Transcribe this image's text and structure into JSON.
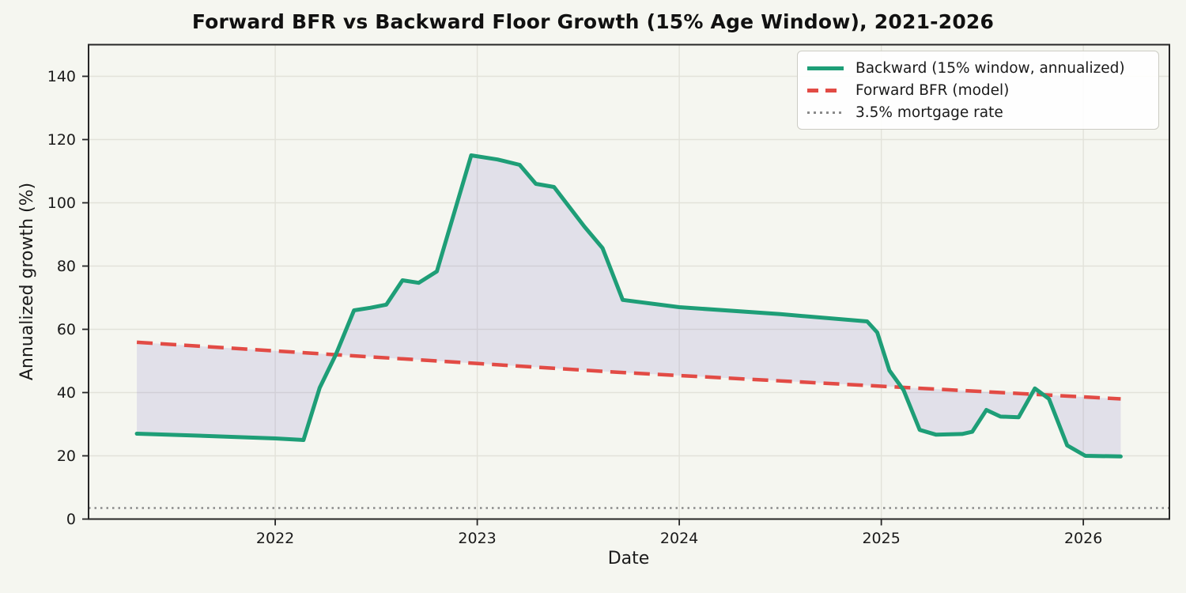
{
  "figure": {
    "background": "#f5f6f0",
    "plot_background": "#f5f6f0"
  },
  "chart_data": {
    "type": "line",
    "title": "Forward BFR vs Backward Floor Growth (15% Age Window), 2021-2026",
    "xlabel": "Date",
    "ylabel": "Annualized growth (%)",
    "xlim": [
      2021.076,
      2026.426
    ],
    "ylim": [
      0,
      150
    ],
    "x_ticks": [
      2022,
      2023,
      2024,
      2025,
      2026
    ],
    "y_ticks": [
      0,
      20,
      40,
      60,
      80,
      100,
      120,
      140
    ],
    "grid": true,
    "legend_position": "upper right",
    "axis": {
      "spine_color": "#262626",
      "grid_color": "#e2e2da",
      "tick_color": "#262626",
      "text_color": "#1a1a1a"
    },
    "series": [
      {
        "name": "Backward (15% window, annualized)",
        "color": "#1e9e77",
        "style": "solid",
        "line_width": 5,
        "points": [
          [
            2021.315,
            27.0
          ],
          [
            2021.7,
            26.2
          ],
          [
            2022.0,
            25.5
          ],
          [
            2022.14,
            25.0
          ],
          [
            2022.22,
            41.5
          ],
          [
            2022.3,
            52.0
          ],
          [
            2022.39,
            66.0
          ],
          [
            2022.47,
            66.8
          ],
          [
            2022.55,
            67.8
          ],
          [
            2022.63,
            75.5
          ],
          [
            2022.71,
            74.7
          ],
          [
            2022.8,
            78.3
          ],
          [
            2022.97,
            115.0
          ],
          [
            2023.1,
            113.7
          ],
          [
            2023.21,
            112.0
          ],
          [
            2023.29,
            106.0
          ],
          [
            2023.38,
            105.0
          ],
          [
            2023.53,
            92.5
          ],
          [
            2023.62,
            85.7
          ],
          [
            2023.72,
            69.3
          ],
          [
            2024.0,
            67.0
          ],
          [
            2024.5,
            64.8
          ],
          [
            2024.93,
            62.5
          ],
          [
            2024.98,
            59.0
          ],
          [
            2025.04,
            47.0
          ],
          [
            2025.11,
            40.8
          ],
          [
            2025.19,
            28.2
          ],
          [
            2025.27,
            26.7
          ],
          [
            2025.4,
            26.9
          ],
          [
            2025.45,
            27.6
          ],
          [
            2025.52,
            34.5
          ],
          [
            2025.59,
            32.4
          ],
          [
            2025.68,
            32.2
          ],
          [
            2025.76,
            41.3
          ],
          [
            2025.83,
            38.0
          ],
          [
            2025.92,
            23.3
          ],
          [
            2026.01,
            20.0
          ],
          [
            2026.185,
            19.8
          ]
        ]
      },
      {
        "name": "Forward BFR (model)",
        "color": "#e24b45",
        "style": "dashed",
        "line_width": 4.5,
        "points": [
          [
            2021.315,
            55.9
          ],
          [
            2023.7,
            46.4
          ],
          [
            2026.185,
            38.0
          ]
        ]
      },
      {
        "name": "3.5% mortgage rate",
        "color": "#8a8a8a",
        "style": "dotted",
        "line_width": 2.5,
        "points": [
          [
            2021.076,
            3.5
          ],
          [
            2026.426,
            3.5
          ]
        ]
      }
    ],
    "fill_between": {
      "upper_series": 0,
      "lower_series": 1,
      "color": "#7264c2",
      "opacity": 0.15
    }
  }
}
